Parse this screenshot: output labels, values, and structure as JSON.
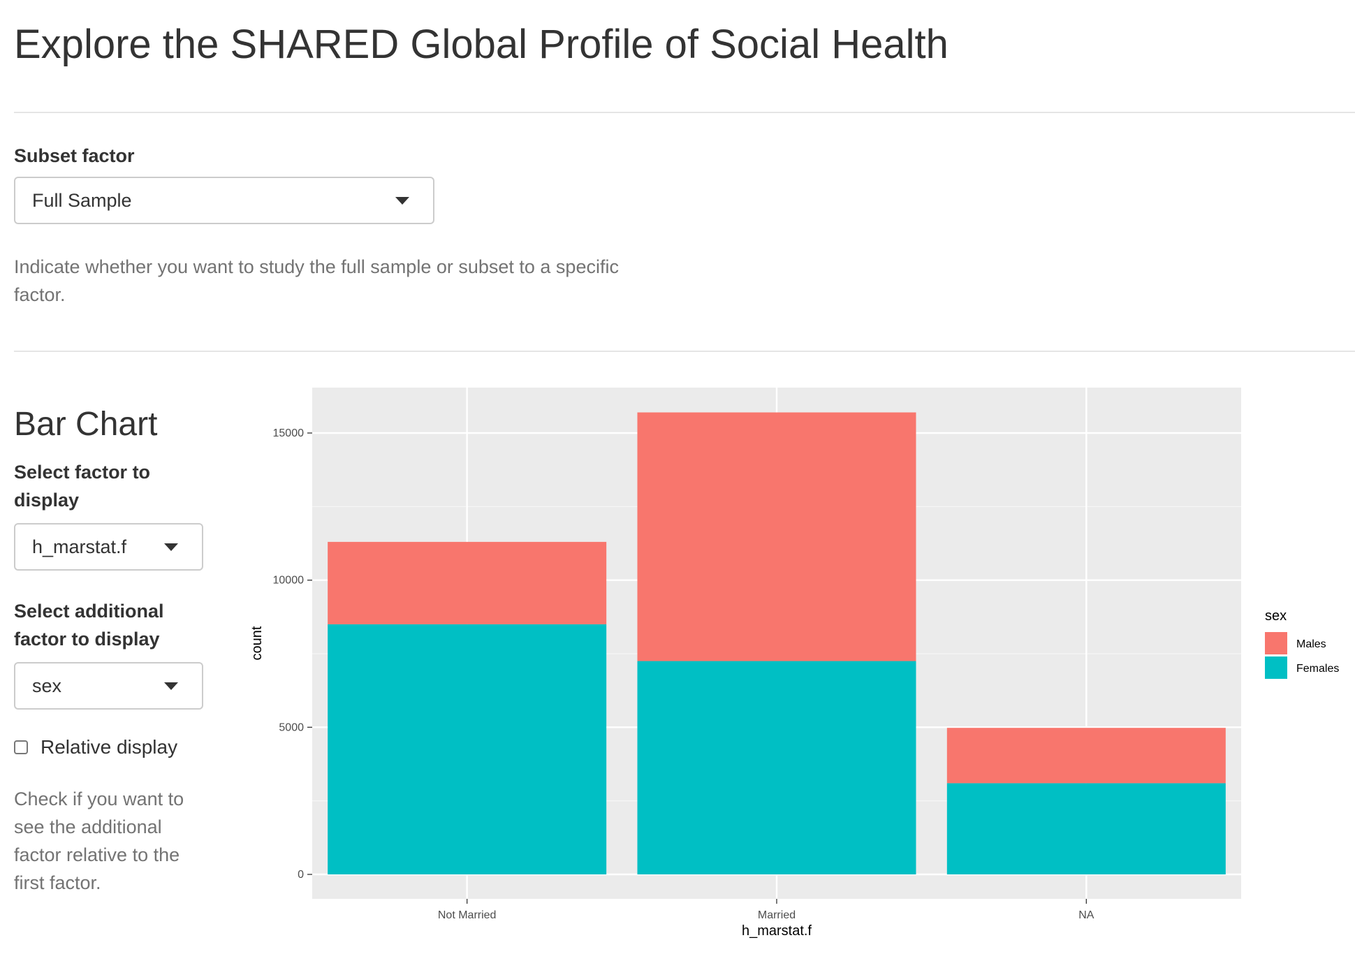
{
  "header": {
    "title": "Explore the SHARED Global Profile of Social Health"
  },
  "subset": {
    "label": "Subset factor",
    "selected": "Full Sample",
    "help": "Indicate whether you want to study the full sample or subset to a specific factor."
  },
  "sidebar": {
    "section_title": "Bar Chart",
    "factor": {
      "label": "Select factor to display",
      "selected": "h_marstat.f"
    },
    "additional_factor": {
      "label": "Select additional factor to display",
      "selected": "sex"
    },
    "relative": {
      "label": "Relative display",
      "checked": false,
      "help": "Check if you want to see the additional factor relative to the first factor."
    }
  },
  "chart_data": {
    "type": "bar",
    "stacked": true,
    "title": "",
    "xlabel": "h_marstat.f",
    "ylabel": "count",
    "categories": [
      "Not Married",
      "Married",
      "NA"
    ],
    "series": [
      {
        "name": "Females",
        "values": [
          8500,
          7250,
          3100
        ],
        "color": "#00BFC4"
      },
      {
        "name": "Males",
        "values": [
          2800,
          8450,
          1880
        ],
        "color": "#F8766D"
      }
    ],
    "ylim": [
      0,
      16500
    ],
    "yticks": [
      0,
      5000,
      10000,
      15000
    ],
    "ytick_labels": [
      "0",
      "5000",
      "10000",
      "15000"
    ],
    "legend": {
      "title": "sex",
      "entries": [
        "Males",
        "Females"
      ],
      "placement": "right"
    },
    "grid": true,
    "panel_background": "#EBEBEB"
  }
}
